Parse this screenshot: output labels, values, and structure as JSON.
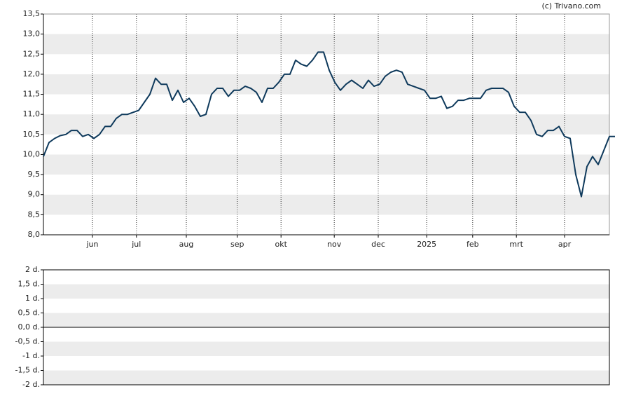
{
  "credit": "(c) Trivano.com",
  "chart_data": [
    {
      "type": "line",
      "color": "#0f3a5c",
      "values": [
        9.95,
        10.3,
        10.4,
        10.47,
        10.5,
        10.6,
        10.6,
        10.45,
        10.5,
        10.4,
        10.5,
        10.7,
        10.7,
        10.9,
        11.0,
        11.0,
        11.05,
        11.1,
        11.3,
        11.5,
        11.9,
        11.75,
        11.75,
        11.35,
        11.6,
        11.3,
        11.4,
        11.2,
        10.95,
        11.0,
        11.5,
        11.65,
        11.65,
        11.45,
        11.6,
        11.6,
        11.7,
        11.65,
        11.55,
        11.3,
        11.65,
        11.65,
        11.8,
        12.0,
        12.0,
        12.35,
        12.25,
        12.2,
        12.35,
        12.55,
        12.55,
        12.1,
        11.8,
        11.6,
        11.75,
        11.85,
        11.75,
        11.65,
        11.85,
        11.7,
        11.75,
        11.95,
        12.05,
        12.1,
        12.05,
        11.75,
        11.7,
        11.65,
        11.6,
        11.4,
        11.4,
        11.45,
        11.15,
        11.2,
        11.35,
        11.35,
        11.4,
        11.4,
        11.4,
        11.6,
        11.65,
        11.65,
        11.65,
        11.55,
        11.2,
        11.05,
        11.05,
        10.85,
        10.5,
        10.45,
        10.6,
        10.6,
        10.7,
        10.45,
        10.4,
        9.5,
        8.95,
        9.7,
        9.95,
        9.75,
        10.1,
        10.45,
        10.45
      ],
      "xlim": [
        0,
        101
      ],
      "xticks": [
        {
          "value": 8.75,
          "label": "jun"
        },
        {
          "value": 16.6,
          "label": "jul"
        },
        {
          "value": 25.5,
          "label": "aug"
        },
        {
          "value": 34.6,
          "label": "sep"
        },
        {
          "value": 42.4,
          "label": "okt"
        },
        {
          "value": 51.9,
          "label": "nov"
        },
        {
          "value": 59.75,
          "label": "dec"
        },
        {
          "value": 68.4,
          "label": "2025"
        },
        {
          "value": 76.6,
          "label": "feb"
        },
        {
          "value": 84.4,
          "label": "mrt"
        },
        {
          "value": 93,
          "label": "apr"
        }
      ],
      "ylim": [
        8,
        13.5
      ],
      "yticks": [
        {
          "value": 8,
          "label": "8,0"
        },
        {
          "value": 8.5,
          "label": "8,5"
        },
        {
          "value": 9,
          "label": "9,0"
        },
        {
          "value": 9.5,
          "label": "9,5"
        },
        {
          "value": 10,
          "label": "10,0"
        },
        {
          "value": 10.5,
          "label": "10,5"
        },
        {
          "value": 11,
          "label": "11,0"
        },
        {
          "value": 11.5,
          "label": "11,5"
        },
        {
          "value": 12,
          "label": "12,0"
        },
        {
          "value": 12.5,
          "label": "12,5"
        },
        {
          "value": 13,
          "label": "13,0"
        },
        {
          "value": 13.5,
          "label": "13,5"
        }
      ]
    },
    {
      "type": "line",
      "ylim": [
        -2,
        2
      ],
      "yticks": [
        {
          "value": -2,
          "label": "-2 d."
        },
        {
          "value": -1.5,
          "label": "-1,5 d."
        },
        {
          "value": -1,
          "label": "-1 d."
        },
        {
          "value": -0.5,
          "label": "-0,5 d."
        },
        {
          "value": 0,
          "label": "0,0 d."
        },
        {
          "value": 0.5,
          "label": "0,5 d."
        },
        {
          "value": 1,
          "label": "1 d."
        },
        {
          "value": 1.5,
          "label": "1,5 d."
        },
        {
          "value": 2,
          "label": "2 d."
        }
      ]
    }
  ]
}
